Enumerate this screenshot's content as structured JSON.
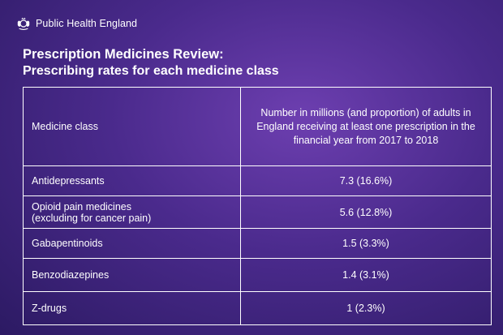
{
  "brand": {
    "name": "Public Health England",
    "crest_icon": "royal-crest-icon"
  },
  "title": "Prescription Medicines Review:",
  "subtitle": "Prescribing rates for each medicine class",
  "table": {
    "headers": {
      "medicine_class": "Medicine class",
      "value": "Number in millions (and proportion) of adults in England receiving at least one prescription in the financial year from 2017 to 2018"
    },
    "rows": [
      {
        "medicine_class": "Antidepressants",
        "value": "7.3 (16.6%)"
      },
      {
        "medicine_class": "Opioid pain medicines\n(excluding for cancer pain)",
        "value": "5.6 (12.8%)"
      },
      {
        "medicine_class": "Gabapentinoids",
        "value": "1.5 (3.3%)"
      },
      {
        "medicine_class": "Benzodiazepines",
        "value": "1.4 (3.1%)"
      },
      {
        "medicine_class": "Z-drugs",
        "value": "1 (2.3%)"
      }
    ]
  },
  "colors": {
    "background_top": "#6d3fb0",
    "background_bottom": "#2c1a63",
    "text": "#ffffff"
  }
}
